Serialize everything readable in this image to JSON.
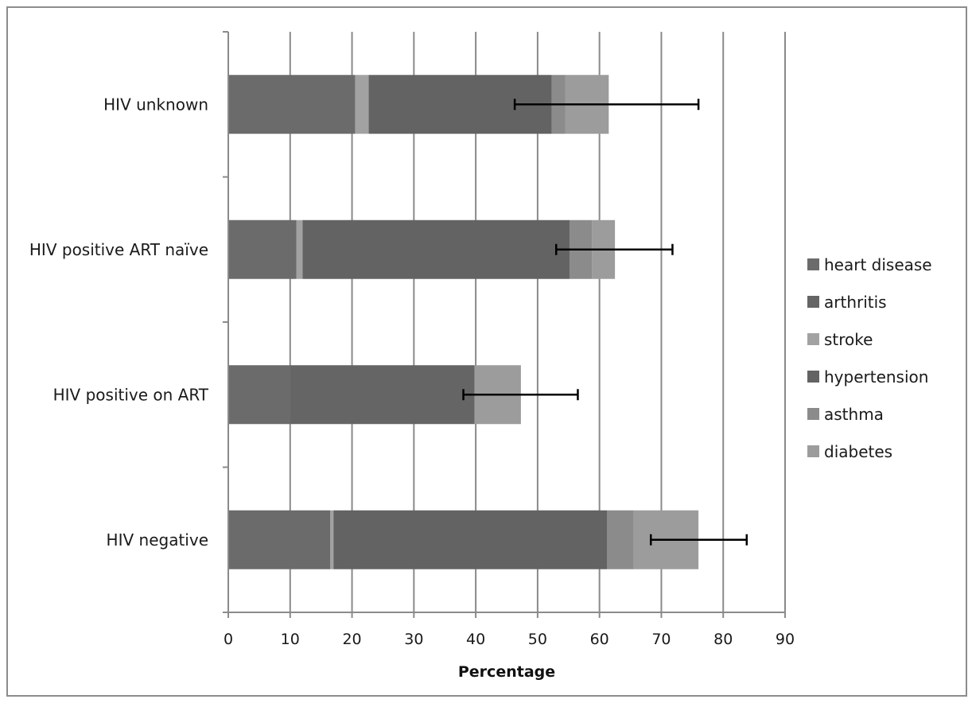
{
  "chart_data": {
    "type": "bar",
    "orientation": "horizontal",
    "stacked": true,
    "categories": [
      "HIV negative",
      "HIV positive on ART",
      "HIV positive ART naïve",
      "HIV unknown"
    ],
    "series": [
      {
        "name": "heart disease",
        "color": "#6b6b6b",
        "values": [
          16.5,
          10.0,
          11.0,
          20.5
        ]
      },
      {
        "name": "arthritis",
        "color": "#656565",
        "values": [
          0.0,
          29.8,
          0.0,
          0.0
        ]
      },
      {
        "name": "stroke",
        "color": "#a2a2a2",
        "values": [
          0.5,
          0.0,
          1.0,
          2.2
        ]
      },
      {
        "name": "hypertension",
        "color": "#636363",
        "values": [
          44.2,
          0.0,
          43.2,
          29.6
        ]
      },
      {
        "name": "asthma",
        "color": "#8b8b8b",
        "values": [
          4.3,
          0.0,
          3.6,
          2.2
        ]
      },
      {
        "name": "diabetes",
        "color": "#9c9c9c",
        "values": [
          10.5,
          7.5,
          3.7,
          7.0
        ]
      }
    ],
    "error_bars": [
      {
        "low": 68.3,
        "high": 83.8
      },
      {
        "low": 38.0,
        "high": 56.5
      },
      {
        "low": 53.0,
        "high": 71.8
      },
      {
        "low": 46.3,
        "high": 76.0
      }
    ],
    "xlabel": "Percentage",
    "ylabel": "",
    "xlim": [
      0,
      90
    ],
    "xticks": [
      0,
      10,
      20,
      30,
      40,
      50,
      60,
      70,
      80,
      90
    ],
    "grid": "vertical",
    "legend": "right"
  }
}
